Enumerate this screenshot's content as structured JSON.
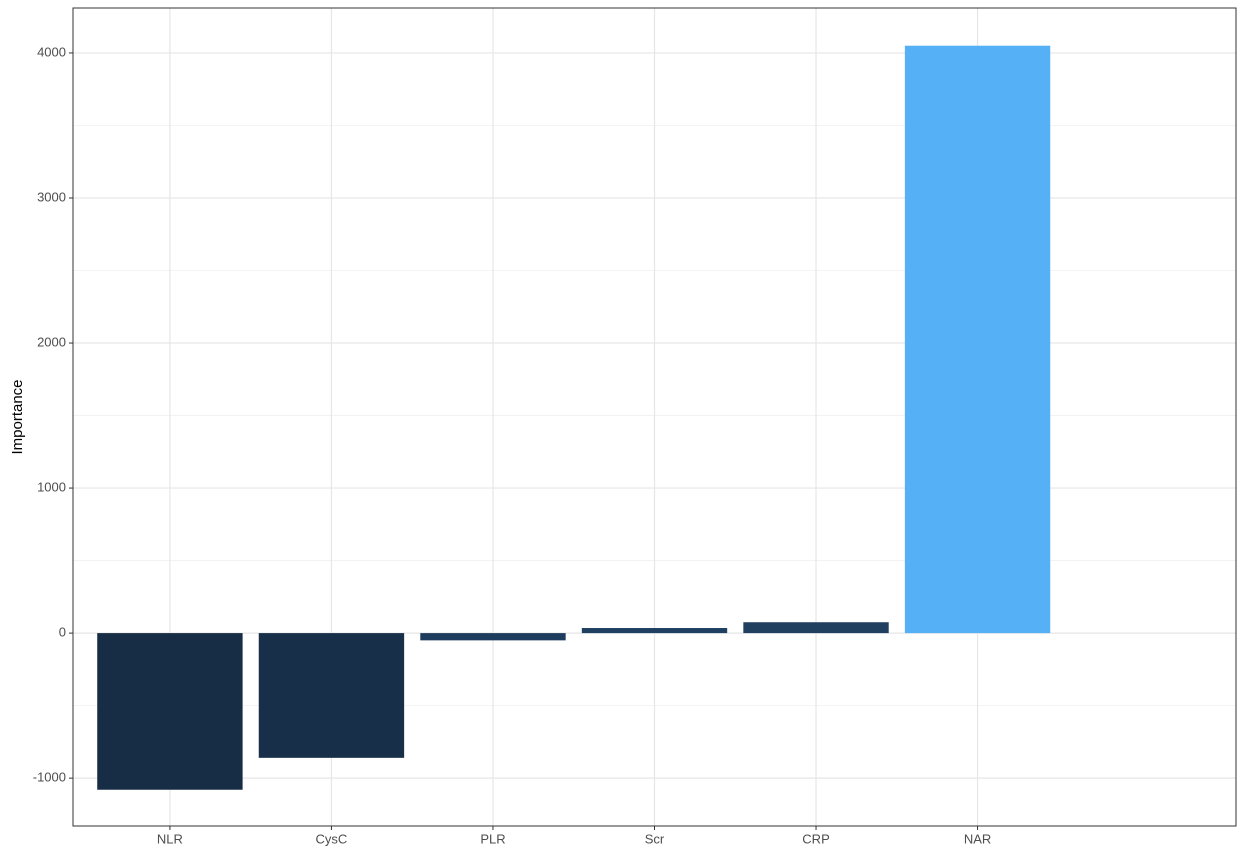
{
  "chart_data": {
    "type": "bar",
    "y_label": "Importance",
    "categories": [
      "NLR",
      "CysC",
      "PLR",
      "Scr",
      "CRP",
      "NAR"
    ],
    "values": [
      -1080,
      -860,
      -50,
      35,
      75,
      4050
    ],
    "colors": [
      "#172d45",
      "#172f48",
      "#1e3d5e",
      "#1f4061",
      "#21405f",
      "#56b0f5"
    ],
    "ylim": [
      -1330,
      4310
    ],
    "yticks": [
      -1000,
      0,
      1000,
      2000,
      3000,
      4000
    ],
    "minor_yticks": [
      -500,
      500,
      1500,
      2500,
      3500
    ],
    "grid": true
  }
}
